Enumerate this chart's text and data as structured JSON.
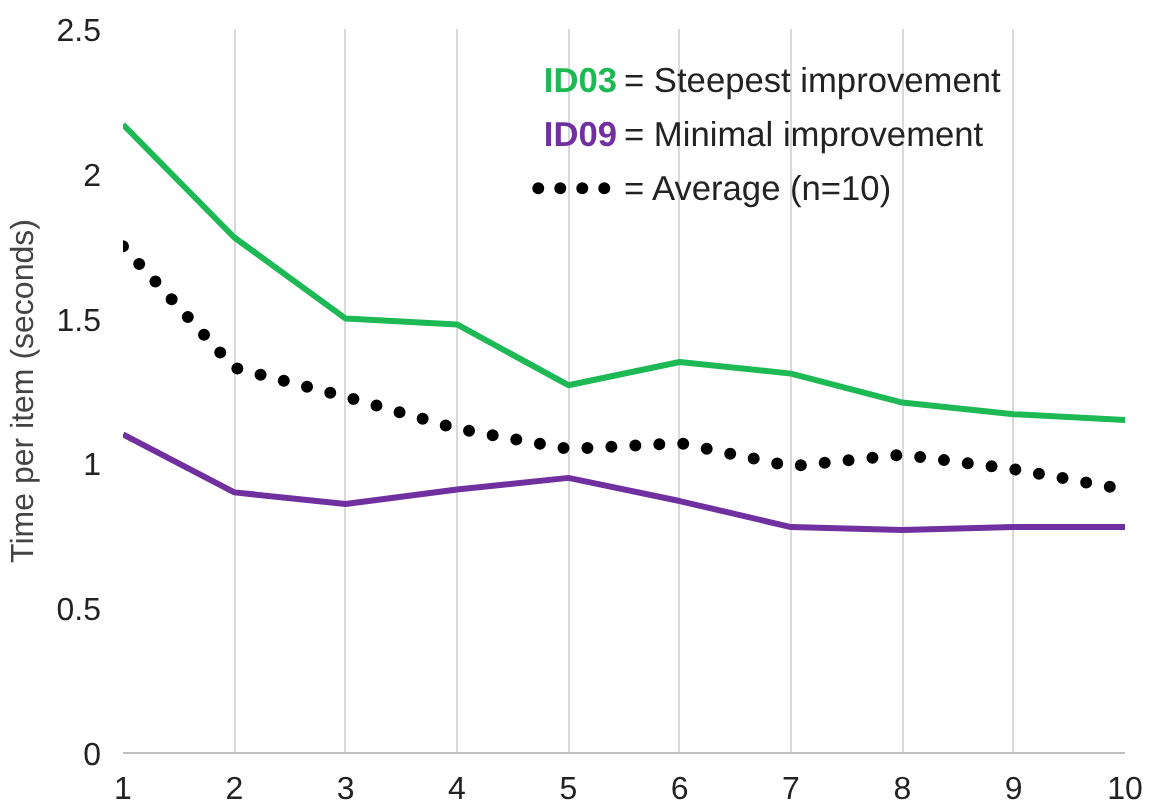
{
  "chart_data": {
    "type": "line",
    "ylabel": "Time per item (seconds)",
    "x": [
      1,
      2,
      3,
      4,
      5,
      6,
      7,
      8,
      9,
      10
    ],
    "xlim": [
      1,
      10
    ],
    "xticks": [
      1,
      2,
      3,
      4,
      5,
      6,
      7,
      8,
      9,
      10
    ],
    "ylim": [
      0,
      2.5
    ],
    "yticks": [
      0,
      0.5,
      1,
      1.5,
      2,
      2.5
    ],
    "grid": "x",
    "legend": "top right",
    "series": [
      {
        "name": "ID03 = Steepest improvement",
        "color": "#1db954",
        "line_style": "solid",
        "values": [
          2.17,
          1.78,
          1.5,
          1.48,
          1.27,
          1.35,
          1.31,
          1.21,
          1.17,
          1.15
        ]
      },
      {
        "name": "ID09 = Minimal improvement",
        "color": "#7030a0",
        "line_style": "solid",
        "values": [
          1.1,
          0.9,
          0.86,
          0.91,
          0.95,
          0.87,
          0.78,
          0.77,
          0.78,
          0.78
        ]
      },
      {
        "name": "= Average (n=10)",
        "color": "#000000",
        "line_style": "dotted",
        "values": [
          1.75,
          1.33,
          1.23,
          1.12,
          1.05,
          1.07,
          0.99,
          1.03,
          0.98,
          0.91
        ]
      }
    ]
  }
}
